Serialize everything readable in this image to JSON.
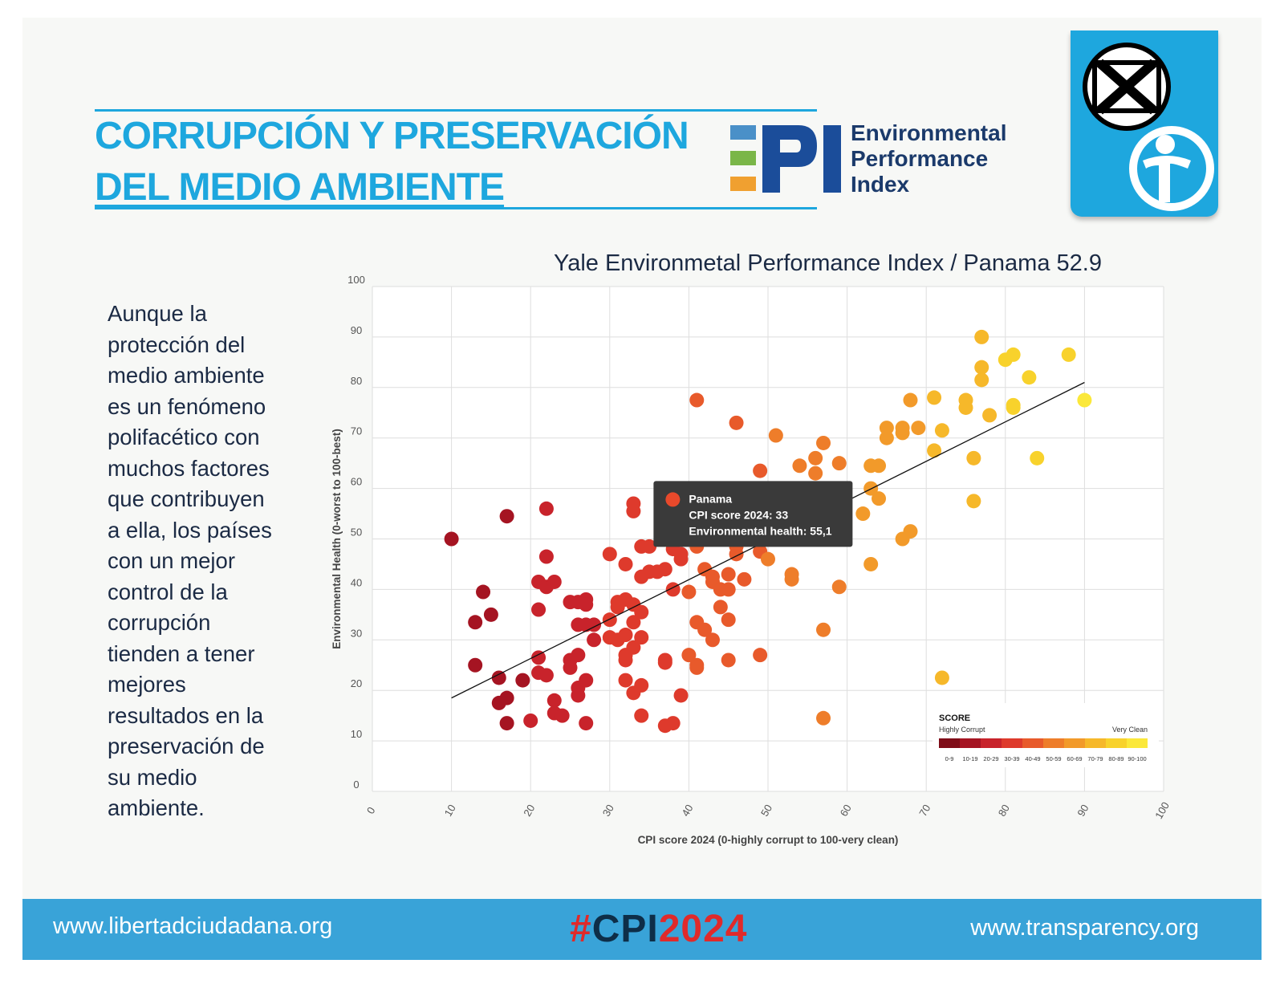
{
  "header": {
    "title_line1": "CORRUPCIÓN Y PRESERVACIÓN",
    "title_line2": "DEL MEDIO AMBIENTE",
    "epi_logo_text": [
      "Environmental",
      "Performance",
      "Index"
    ],
    "epi_bar_colors": [
      "#4a90c8",
      "#7ab648",
      "#f0a030"
    ],
    "epi_letters_color": "#1b4d9a",
    "ti_logo_color": "#1ea7de"
  },
  "side_text": {
    "lines": [
      "Aunque la",
      "protección del",
      "medio ambiente",
      "es un fenómeno",
      "polifacético con",
      "muchos factores",
      "que contribuyen",
      "a ella, los países",
      "con  un mejor",
      "control de la",
      "corrupción",
      "tienden a tener",
      "mejores",
      "resultados en la",
      "preservación de",
      "su medio",
      "ambiente."
    ]
  },
  "footer": {
    "left_url": "www.libertadciudadana.org",
    "hashtag_hash": "#",
    "hashtag_cpi": "CPI",
    "hashtag_year": "2024",
    "right_url": "www.transparency.org",
    "bar_color": "#39a3d8"
  },
  "chart_data": {
    "type": "scatter",
    "title": "Yale Environmetal Performance Index / Panama 52.9",
    "xlabel": "CPI score 2024 (0-highly corrupt to 100-very clean)",
    "ylabel": "Environmental Health (0-worst to 100-best)",
    "xlim": [
      0,
      100
    ],
    "ylim": [
      0,
      100
    ],
    "x_ticks": [
      "0",
      "10",
      "20",
      "30",
      "40",
      "50",
      "60",
      "70",
      "80",
      "90",
      "100"
    ],
    "y_ticks": [
      "0",
      "10",
      "20",
      "30",
      "40",
      "50",
      "60",
      "70",
      "80",
      "90",
      "100"
    ],
    "grid": true,
    "trendline": {
      "x": [
        10,
        90
      ],
      "y": [
        18.5,
        81
      ]
    },
    "tooltip": {
      "name": "Panama",
      "line1": "CPI score 2024: 33",
      "line2": "Environmental health: 55,1",
      "x": 33,
      "y": 55.1
    },
    "legend": {
      "title": "SCORE",
      "left_label": "Highly Corrupt",
      "right_label": "Very Clean",
      "bins": [
        "0-9",
        "10-19",
        "20-29",
        "30-39",
        "40-49",
        "50-59",
        "60-69",
        "70-79",
        "80-89",
        "90-100"
      ],
      "colors": [
        "#7f0d18",
        "#a51422",
        "#c8232b",
        "#de3a2c",
        "#e85a2b",
        "#ee7d2a",
        "#f29a2a",
        "#f6b82a",
        "#f8d22c",
        "#fbe83a"
      ],
      "placement": "bottom-right"
    },
    "points": [
      [
        10,
        50
      ],
      [
        13,
        33.5
      ],
      [
        13,
        25
      ],
      [
        14,
        39.5
      ],
      [
        15,
        35
      ],
      [
        16,
        22.5
      ],
      [
        16,
        17.5
      ],
      [
        17,
        54.5
      ],
      [
        17,
        18.5
      ],
      [
        17,
        13.5
      ],
      [
        19,
        22
      ],
      [
        20,
        14
      ],
      [
        21,
        26.5
      ],
      [
        21,
        41.5
      ],
      [
        21,
        36
      ],
      [
        21,
        23.5
      ],
      [
        22,
        56
      ],
      [
        22,
        46.5
      ],
      [
        22,
        40.5
      ],
      [
        22,
        23
      ],
      [
        23,
        41.5
      ],
      [
        23,
        18
      ],
      [
        23,
        15.5
      ],
      [
        24,
        15
      ],
      [
        25,
        37.5
      ],
      [
        25,
        26
      ],
      [
        25,
        24.5
      ],
      [
        26,
        37.5
      ],
      [
        26,
        33
      ],
      [
        26,
        27
      ],
      [
        26,
        20.5
      ],
      [
        26,
        19
      ],
      [
        27,
        38
      ],
      [
        27,
        37
      ],
      [
        27,
        33
      ],
      [
        27,
        22
      ],
      [
        27,
        13.5
      ],
      [
        28,
        33
      ],
      [
        28,
        30
      ],
      [
        30,
        47
      ],
      [
        30,
        34
      ],
      [
        30,
        30.5
      ],
      [
        31,
        37.5
      ],
      [
        31,
        36.5
      ],
      [
        31,
        30
      ],
      [
        32,
        45
      ],
      [
        32,
        38
      ],
      [
        32,
        31
      ],
      [
        32,
        27
      ],
      [
        32,
        26
      ],
      [
        32,
        22
      ],
      [
        33,
        57
      ],
      [
        33,
        55.5
      ],
      [
        33,
        37
      ],
      [
        33,
        33.5
      ],
      [
        33,
        28.5
      ],
      [
        33,
        19.5
      ],
      [
        34,
        48.5
      ],
      [
        34,
        42.5
      ],
      [
        34,
        35.5
      ],
      [
        34,
        30.5
      ],
      [
        34,
        21
      ],
      [
        34,
        15
      ],
      [
        35,
        48.5
      ],
      [
        35,
        43.5
      ],
      [
        36,
        43.5
      ],
      [
        37,
        44
      ],
      [
        37,
        26
      ],
      [
        37,
        25.5
      ],
      [
        37,
        13
      ],
      [
        38,
        48
      ],
      [
        38,
        40
      ],
      [
        38,
        13.5
      ],
      [
        39,
        46
      ],
      [
        39,
        47
      ],
      [
        39,
        19
      ],
      [
        40,
        39.5
      ],
      [
        40,
        27
      ],
      [
        41,
        77.5
      ],
      [
        41,
        48.5
      ],
      [
        41,
        33.5
      ],
      [
        41,
        25
      ],
      [
        41,
        24.5
      ],
      [
        42,
        44
      ],
      [
        42,
        32
      ],
      [
        43,
        42.5
      ],
      [
        43,
        41.5
      ],
      [
        43,
        30
      ],
      [
        44,
        40
      ],
      [
        44,
        36.5
      ],
      [
        45,
        43
      ],
      [
        45,
        40
      ],
      [
        45,
        34
      ],
      [
        45,
        26
      ],
      [
        46,
        73
      ],
      [
        46,
        48.5
      ],
      [
        46,
        47
      ],
      [
        47,
        42
      ],
      [
        49,
        63.5
      ],
      [
        49,
        47.5
      ],
      [
        49,
        27
      ],
      [
        50,
        46
      ],
      [
        51,
        70.5
      ],
      [
        53,
        43
      ],
      [
        53,
        42
      ],
      [
        54,
        64.5
      ],
      [
        56,
        66
      ],
      [
        56,
        63
      ],
      [
        57,
        69
      ],
      [
        57,
        32
      ],
      [
        57,
        14.5
      ],
      [
        59,
        65
      ],
      [
        59,
        40.5
      ],
      [
        62,
        55
      ],
      [
        63,
        64.5
      ],
      [
        63,
        60
      ],
      [
        63,
        45
      ],
      [
        64,
        64.5
      ],
      [
        64,
        58
      ],
      [
        65,
        72
      ],
      [
        65,
        70
      ],
      [
        67,
        72
      ],
      [
        67,
        71
      ],
      [
        67,
        50
      ],
      [
        68,
        77.5
      ],
      [
        68,
        51.5
      ],
      [
        69,
        72
      ],
      [
        71,
        78
      ],
      [
        71,
        67.5
      ],
      [
        72,
        71.5
      ],
      [
        72,
        22.5
      ],
      [
        75,
        77.5
      ],
      [
        75,
        76
      ],
      [
        76,
        66
      ],
      [
        76,
        57.5
      ],
      [
        77,
        90
      ],
      [
        77,
        84
      ],
      [
        77,
        81.5
      ],
      [
        78,
        74.5
      ],
      [
        80,
        85.5
      ],
      [
        81,
        86.5
      ],
      [
        81,
        76.5
      ],
      [
        81,
        76
      ],
      [
        83,
        82
      ],
      [
        84,
        66
      ],
      [
        88,
        86.5
      ],
      [
        90,
        77.5
      ]
    ]
  }
}
